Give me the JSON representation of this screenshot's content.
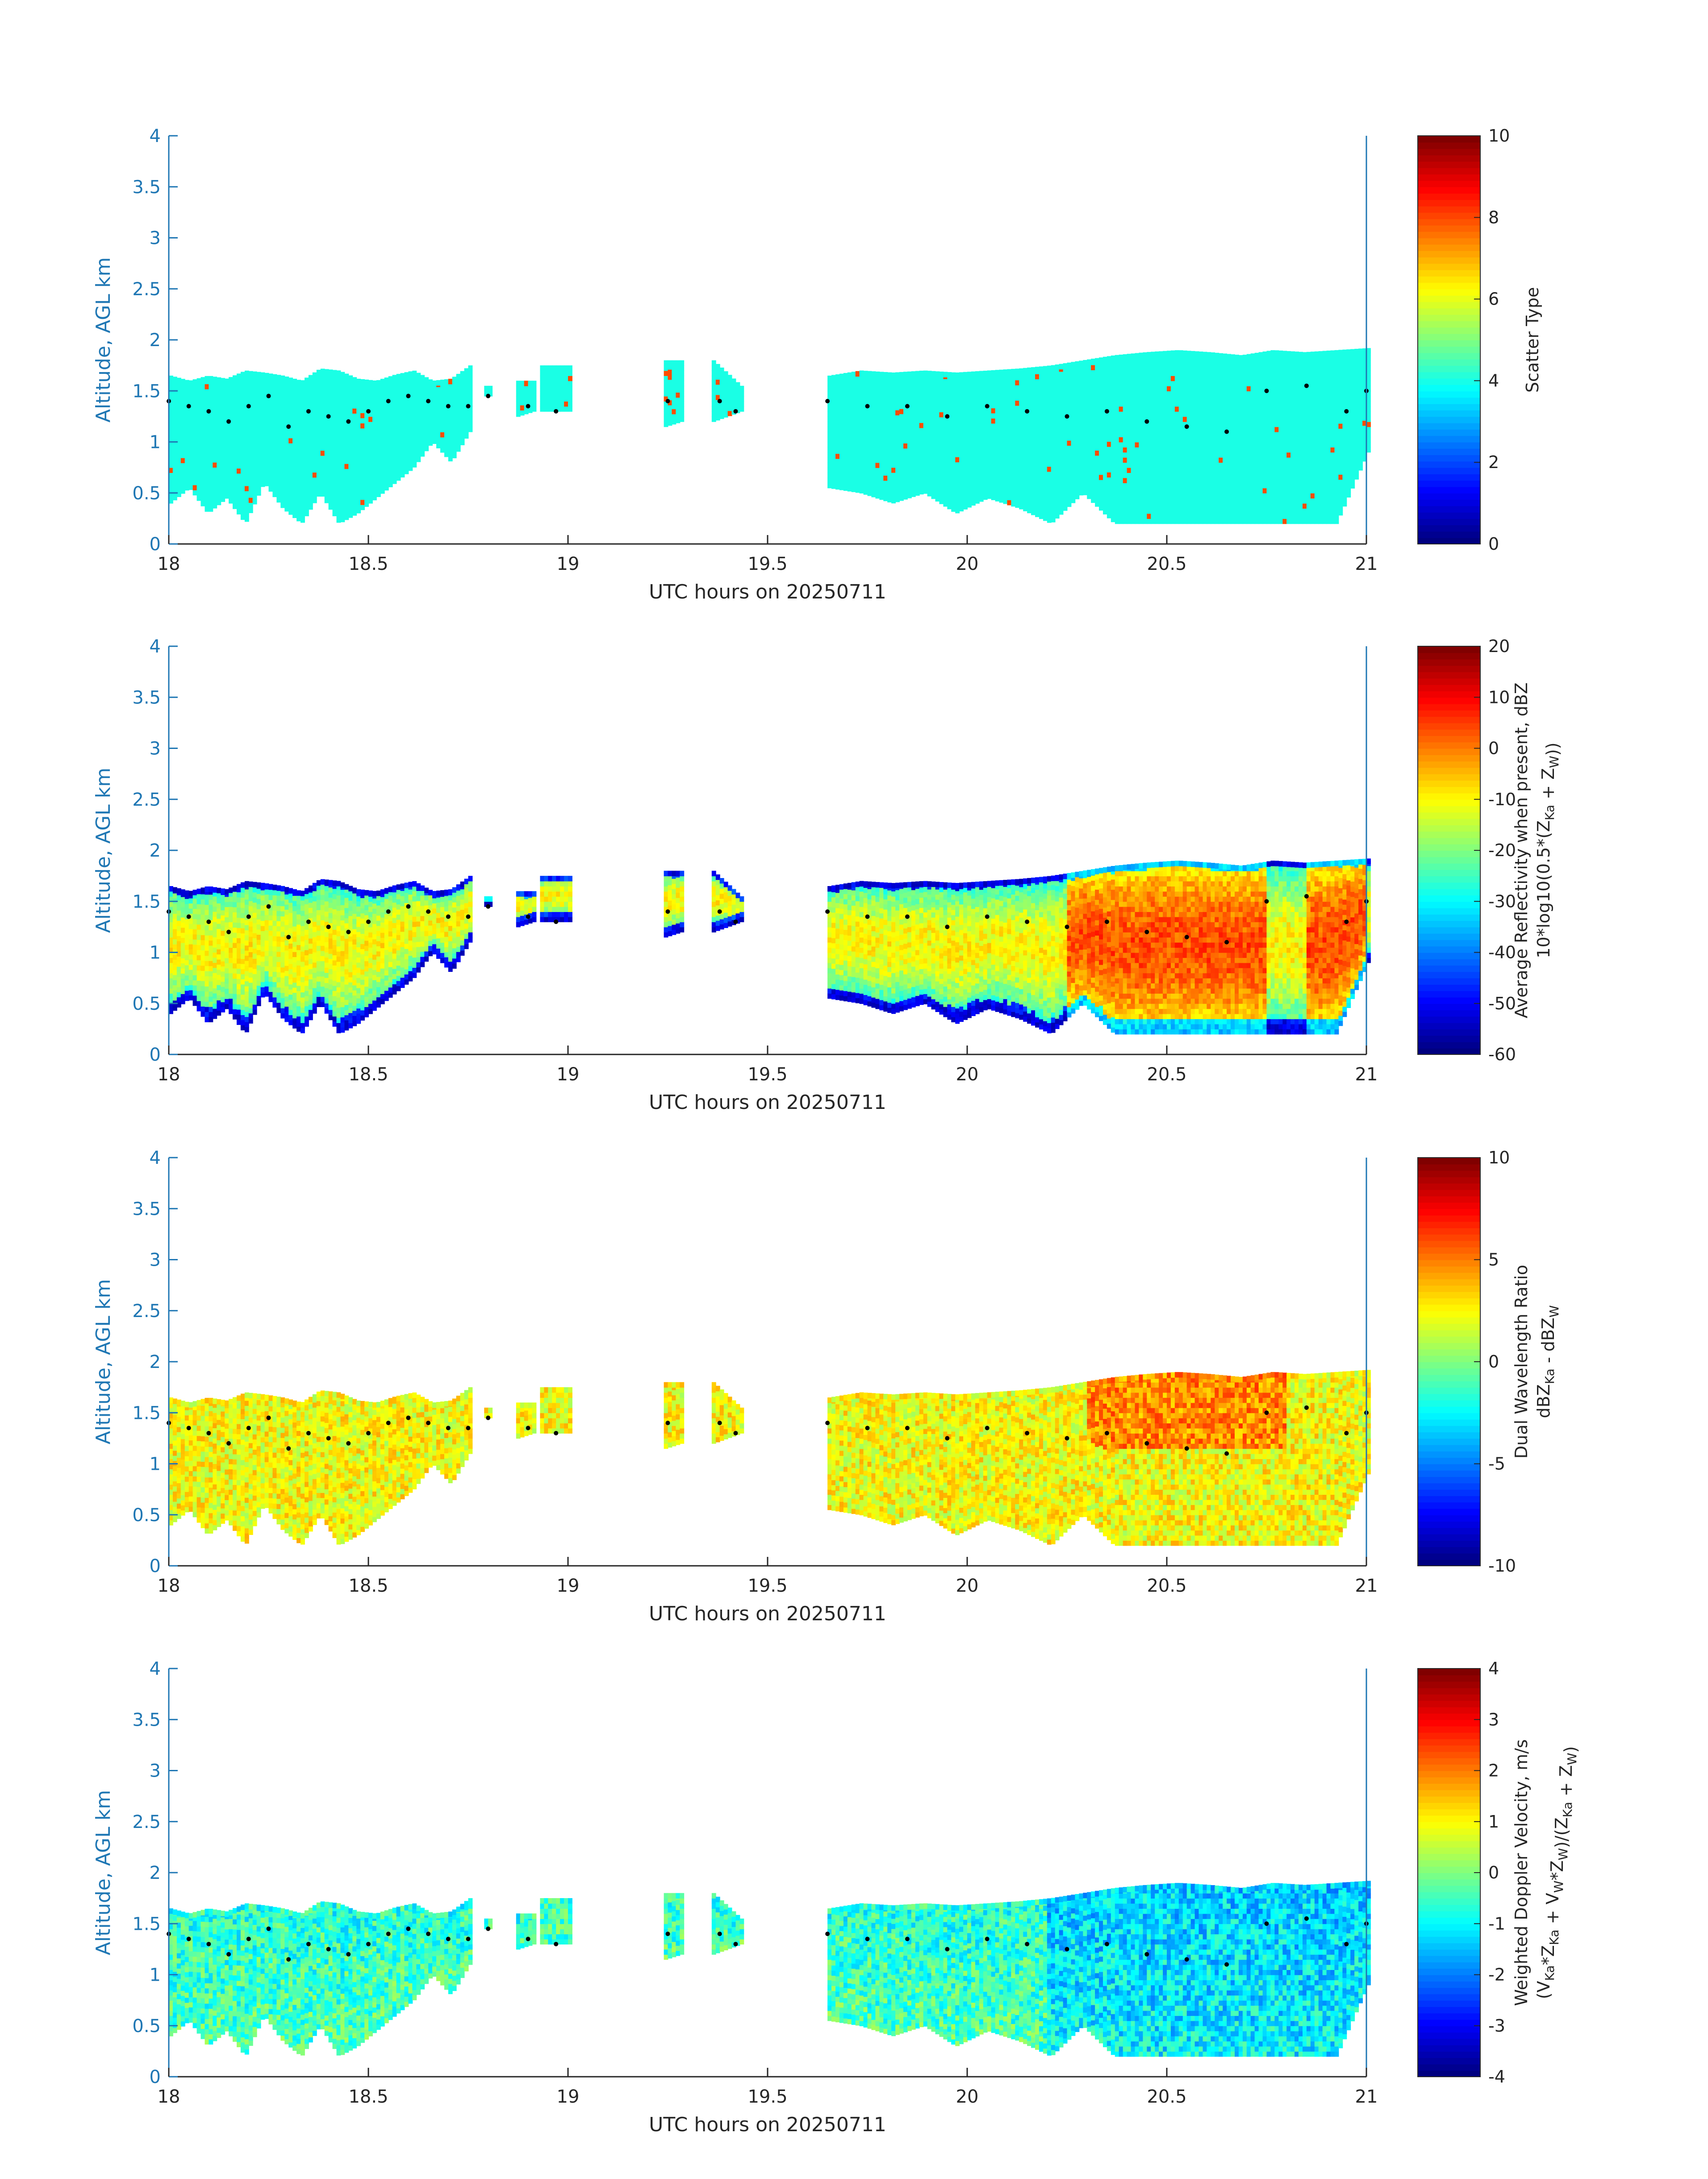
{
  "chart_data": [
    {
      "type": "heatmap",
      "xlabel": "UTC hours on 20250711",
      "ylabel": "Altitude, AGL km",
      "xlim": [
        18,
        21
      ],
      "ylim": [
        0,
        4
      ],
      "x_ticks": [
        "18",
        "18.5",
        "19",
        "19.5",
        "20",
        "20.5",
        "21"
      ],
      "y_ticks": [
        "0",
        "0.5",
        "1",
        "1.5",
        "2",
        "2.5",
        "3",
        "3.5",
        "4"
      ],
      "colorbar": {
        "label_lines": [
          "Scatter Type"
        ],
        "range": [
          0,
          10
        ],
        "ticks": [
          "0",
          "2",
          "4",
          "6",
          "8",
          "10"
        ]
      },
      "value_mode": "scatter"
    },
    {
      "type": "heatmap",
      "xlabel": "UTC hours on 20250711",
      "ylabel": "Altitude, AGL km",
      "xlim": [
        18,
        21
      ],
      "ylim": [
        0,
        4
      ],
      "x_ticks": [
        "18",
        "18.5",
        "19",
        "19.5",
        "20",
        "20.5",
        "21"
      ],
      "y_ticks": [
        "0",
        "0.5",
        "1",
        "1.5",
        "2",
        "2.5",
        "3",
        "3.5",
        "4"
      ],
      "colorbar": {
        "label_lines": [
          "Average Reflectivity when present, dBZ",
          "10*log10(0.5*(Z_Ka + Z_W))"
        ],
        "range": [
          -60,
          20
        ],
        "ticks": [
          "-60",
          "-50",
          "-40",
          "-30",
          "-20",
          "-10",
          "0",
          "10",
          "20"
        ]
      },
      "value_mode": "reflectivity"
    },
    {
      "type": "heatmap",
      "xlabel": "UTC hours on 20250711",
      "ylabel": "Altitude, AGL km",
      "xlim": [
        18,
        21
      ],
      "ylim": [
        0,
        4
      ],
      "x_ticks": [
        "18",
        "18.5",
        "19",
        "19.5",
        "20",
        "20.5",
        "21"
      ],
      "y_ticks": [
        "0",
        "0.5",
        "1",
        "1.5",
        "2",
        "2.5",
        "3",
        "3.5",
        "4"
      ],
      "colorbar": {
        "label_lines": [
          "Dual Wavelength Ratio",
          "dBZ_Ka - dBZ_W"
        ],
        "range": [
          -10,
          10
        ],
        "ticks": [
          "-10",
          "-5",
          "0",
          "5",
          "10"
        ]
      },
      "value_mode": "dwr"
    },
    {
      "type": "heatmap",
      "xlabel": "UTC hours on 20250711",
      "ylabel": "Altitude, AGL km",
      "xlim": [
        18,
        21
      ],
      "ylim": [
        0,
        4
      ],
      "x_ticks": [
        "18",
        "18.5",
        "19",
        "19.5",
        "20",
        "20.5",
        "21"
      ],
      "y_ticks": [
        "0",
        "0.5",
        "1",
        "1.5",
        "2",
        "2.5",
        "3",
        "3.5",
        "4"
      ],
      "colorbar": {
        "label_lines": [
          "Weighted Doppler Velocity, m/s",
          "(V_Ka*Z_Ka + V_W*Z_W)/(Z_Ka + Z_W)"
        ],
        "range": [
          -4,
          4
        ],
        "ticks": [
          "-4",
          "-3",
          "-2",
          "-1",
          "0",
          "1",
          "2",
          "3",
          "4"
        ]
      },
      "value_mode": "velocity"
    }
  ],
  "cloud_segments": [
    {
      "x0": 18.0,
      "x1": 18.75,
      "top": [
        1.65,
        1.6,
        1.65,
        1.62,
        1.7,
        1.68,
        1.65,
        1.6,
        1.72,
        1.7,
        1.62,
        1.6,
        1.66,
        1.7,
        1.6,
        1.62,
        1.75
      ],
      "base": [
        0.4,
        0.55,
        0.3,
        0.45,
        0.2,
        0.6,
        0.35,
        0.2,
        0.5,
        0.2,
        0.3,
        0.45,
        0.6,
        0.75,
        1.0,
        0.8,
        1.1
      ]
    },
    {
      "x0": 18.79,
      "x1": 18.8,
      "top": [
        1.55,
        1.55
      ],
      "base": [
        1.45,
        1.45
      ]
    },
    {
      "x0": 18.87,
      "x1": 18.91,
      "top": [
        1.6,
        1.6
      ],
      "base": [
        1.25,
        1.3
      ]
    },
    {
      "x0": 18.93,
      "x1": 19.0,
      "top": [
        1.75,
        1.75
      ],
      "base": [
        1.3,
        1.3
      ]
    },
    {
      "x0": 19.24,
      "x1": 19.28,
      "top": [
        1.8,
        1.8
      ],
      "base": [
        1.15,
        1.2
      ]
    },
    {
      "x0": 19.36,
      "x1": 19.43,
      "top": [
        1.8,
        1.55
      ],
      "base": [
        1.2,
        1.3
      ]
    },
    {
      "x0": 19.65,
      "x1": 21.0,
      "top": [
        1.65,
        1.7,
        1.68,
        1.7,
        1.68,
        1.7,
        1.72,
        1.75,
        1.8,
        1.85,
        1.88,
        1.9,
        1.88,
        1.85,
        1.9,
        1.88,
        1.9,
        1.92
      ],
      "base": [
        0.55,
        0.5,
        0.4,
        0.5,
        0.3,
        0.45,
        0.35,
        0.2,
        0.5,
        0.2,
        0.2,
        0.2,
        0.2,
        0.2,
        0.2,
        0.2,
        0.2,
        0.9
      ]
    }
  ],
  "melting_layer_dots": {
    "x": [
      18.0,
      18.05,
      18.1,
      18.15,
      18.2,
      18.25,
      18.3,
      18.35,
      18.4,
      18.45,
      18.5,
      18.55,
      18.6,
      18.65,
      18.7,
      18.75,
      18.8,
      18.9,
      18.97,
      19.25,
      19.38,
      19.42,
      19.65,
      19.75,
      19.85,
      19.95,
      20.05,
      20.15,
      20.25,
      20.35,
      20.45,
      20.55,
      20.65,
      20.75,
      20.85,
      20.95,
      21.0
    ],
    "y": [
      1.4,
      1.35,
      1.3,
      1.2,
      1.35,
      1.45,
      1.15,
      1.3,
      1.25,
      1.2,
      1.3,
      1.4,
      1.45,
      1.4,
      1.35,
      1.35,
      1.45,
      1.35,
      1.3,
      1.4,
      1.4,
      1.3,
      1.4,
      1.35,
      1.35,
      1.25,
      1.35,
      1.3,
      1.25,
      1.3,
      1.2,
      1.15,
      1.1,
      1.5,
      1.55,
      1.3,
      1.5
    ]
  }
}
